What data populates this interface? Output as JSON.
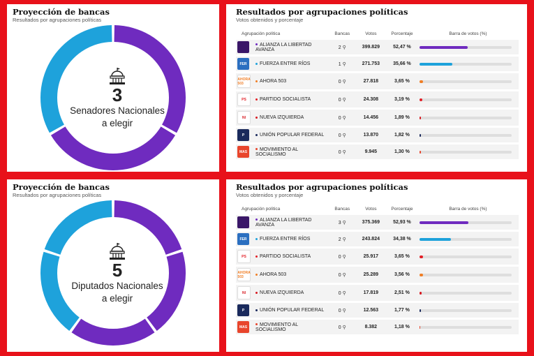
{
  "colors": {
    "purple": "#6f2bbf",
    "blue": "#1ea2db",
    "gray_bg": "#f3f3f3"
  },
  "sections": [
    {
      "left": {
        "title": "Proyección de bancas",
        "subtitle": "Resultados por agrupaciones políticas",
        "number": "3",
        "line1": "Senadores Nacionales",
        "line2": "a elegir",
        "donut_segments": [
          {
            "color": "#6f2bbf",
            "seats": 2
          },
          {
            "color": "#1ea2db",
            "seats": 1
          }
        ]
      },
      "right": {
        "title": "Resultados por agrupaciones políticas",
        "subtitle": "Votos obtenidos y porcentaje",
        "headers": {
          "group": "Agrupación política",
          "seats": "Bancas",
          "votes": "Votos",
          "pct": "Porcentaje",
          "bar": "Barra de votos (%)"
        },
        "rows": [
          {
            "name": "ALIANZA LA LIBERTAD AVANZA",
            "seats": "2",
            "votes": "399.829",
            "pct": "52,47 %",
            "value": 52.47,
            "color": "#6f2bbf",
            "logo_bg": "#3a1768",
            "logo": ""
          },
          {
            "name": "FUERZA ENTRE RÍOS",
            "seats": "1",
            "votes": "271.753",
            "pct": "35,66 %",
            "value": 35.66,
            "color": "#1ea2db",
            "logo_bg": "#2b6fc0",
            "logo": "FER"
          },
          {
            "name": "AHORA 503",
            "seats": "0",
            "votes": "27.818",
            "pct": "3,65 %",
            "value": 3.65,
            "color": "#f07e25",
            "logo_bg": "#ffffff",
            "logo": "AHORA 503"
          },
          {
            "name": "PARTIDO SOCIALISTA",
            "seats": "0",
            "votes": "24.308",
            "pct": "3,19 %",
            "value": 3.19,
            "color": "#e31f26",
            "logo_bg": "#ffffff",
            "logo": "PS"
          },
          {
            "name": "NUEVA IZQUIERDA",
            "seats": "0",
            "votes": "14.456",
            "pct": "1,89 %",
            "value": 1.89,
            "color": "#d71920",
            "logo_bg": "#ffffff",
            "logo": "NI"
          },
          {
            "name": "UNIÓN POPULAR FEDERAL",
            "seats": "0",
            "votes": "13.870",
            "pct": "1,82 %",
            "value": 1.82,
            "color": "#1a2a5c",
            "logo_bg": "#1a2a5c",
            "logo": "P"
          },
          {
            "name": "MOVIMIENTO AL SOCIALISMO",
            "seats": "0",
            "votes": "9.945",
            "pct": "1,30 %",
            "value": 1.3,
            "color": "#e8452c",
            "logo_bg": "#e8452c",
            "logo": "MAS"
          }
        ]
      }
    },
    {
      "left": {
        "title": "Proyección de bancas",
        "subtitle": "Resultados por agrupaciones políticas",
        "number": "5",
        "line1": "Diputados Nacionales",
        "line2": "a elegir",
        "donut_segments": [
          {
            "color": "#6f2bbf",
            "seats": 3
          },
          {
            "color": "#1ea2db",
            "seats": 2
          }
        ]
      },
      "right": {
        "title": "Resultados por agrupaciones políticas",
        "subtitle": "Votos obtenidos y porcentaje",
        "headers": {
          "group": "Agrupación política",
          "seats": "Bancas",
          "votes": "Votos",
          "pct": "Porcentaje",
          "bar": "Barra de votos (%)"
        },
        "rows": [
          {
            "name": "ALIANZA LA LIBERTAD AVANZA",
            "seats": "3",
            "votes": "375.369",
            "pct": "52,93 %",
            "value": 52.93,
            "color": "#6f2bbf",
            "logo_bg": "#3a1768",
            "logo": ""
          },
          {
            "name": "FUERZA ENTRE RÍOS",
            "seats": "2",
            "votes": "243.824",
            "pct": "34,38 %",
            "value": 34.38,
            "color": "#1ea2db",
            "logo_bg": "#2b6fc0",
            "logo": "FER"
          },
          {
            "name": "PARTIDO SOCIALISTA",
            "seats": "0",
            "votes": "25.917",
            "pct": "3,65 %",
            "value": 3.65,
            "color": "#e31f26",
            "logo_bg": "#ffffff",
            "logo": "PS"
          },
          {
            "name": "AHORA 503",
            "seats": "0",
            "votes": "25.289",
            "pct": "3,56 %",
            "value": 3.56,
            "color": "#f07e25",
            "logo_bg": "#ffffff",
            "logo": "AHORA 503"
          },
          {
            "name": "NUEVA IZQUIERDA",
            "seats": "0",
            "votes": "17.819",
            "pct": "2,51 %",
            "value": 2.51,
            "color": "#d71920",
            "logo_bg": "#ffffff",
            "logo": "NI"
          },
          {
            "name": "UNIÓN POPULAR FEDERAL",
            "seats": "0",
            "votes": "12.563",
            "pct": "1,77 %",
            "value": 1.77,
            "color": "#1a2a5c",
            "logo_bg": "#1a2a5c",
            "logo": "P"
          },
          {
            "name": "MOVIMIENTO AL SOCIALISMO",
            "seats": "0",
            "votes": "8.382",
            "pct": "1,18 %",
            "value": 1.18,
            "color": "#e8452c",
            "logo_bg": "#e8452c",
            "logo": "MAS"
          }
        ]
      }
    }
  ]
}
